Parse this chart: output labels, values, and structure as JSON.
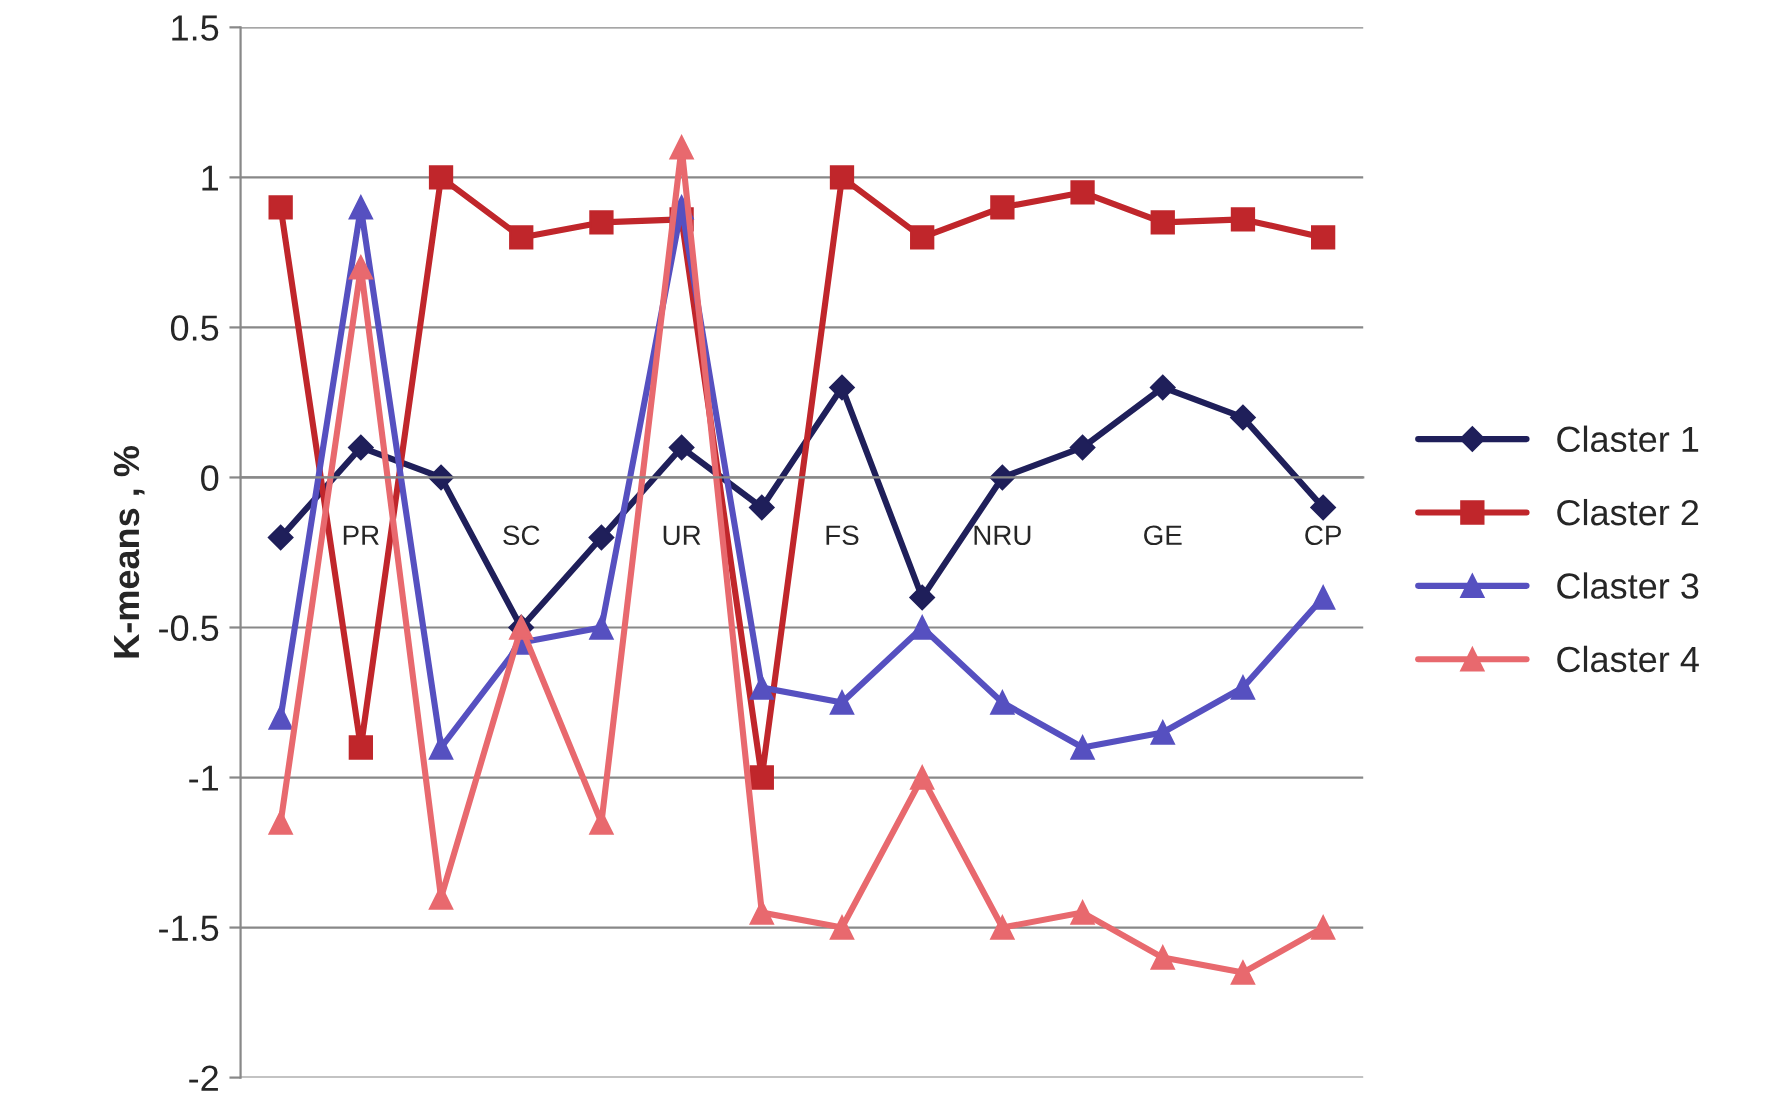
{
  "chart_data": {
    "type": "line",
    "ylabel": "K-means , %",
    "categories": [
      null,
      "PR",
      null,
      "SC",
      null,
      "UR",
      null,
      "FS",
      null,
      "NRU",
      null,
      "GE",
      null,
      "CP"
    ],
    "series": [
      {
        "name": "Claster 1",
        "color": "#1f1f5a",
        "marker": "diamond",
        "values": [
          -0.2,
          0.1,
          0,
          -0.5,
          -0.2,
          0.1,
          -0.1,
          0.3,
          -0.4,
          0,
          0.1,
          0.3,
          0.2,
          -0.1
        ]
      },
      {
        "name": "Claster 2",
        "color": "#c0262b",
        "marker": "square",
        "values": [
          0.9,
          -0.9,
          1.0,
          0.8,
          0.85,
          0.86,
          -1.0,
          1.0,
          0.8,
          0.9,
          0.95,
          0.85,
          0.86,
          0.8
        ]
      },
      {
        "name": "Claster 3",
        "color": "#5650c0",
        "marker": "triangle",
        "values": [
          -0.8,
          0.9,
          -0.9,
          -0.55,
          -0.5,
          0.9,
          -0.7,
          -0.75,
          -0.5,
          -0.75,
          -0.9,
          -0.85,
          -0.7,
          -0.4
        ]
      },
      {
        "name": "Claster 4",
        "color": "#e8696e",
        "marker": "triangle",
        "values": [
          -1.15,
          0.7,
          -1.4,
          -0.5,
          -1.15,
          1.1,
          -1.45,
          -1.5,
          -1.0,
          -1.5,
          -1.45,
          -1.6,
          -1.65,
          -1.5
        ]
      }
    ],
    "ylim": [
      -2,
      1.5
    ],
    "yticks": [
      -2,
      -1.5,
      -1,
      -0.5,
      0,
      0.5,
      1,
      1.5
    ],
    "grid": "y",
    "legend": "right",
    "line_style": "solid"
  }
}
